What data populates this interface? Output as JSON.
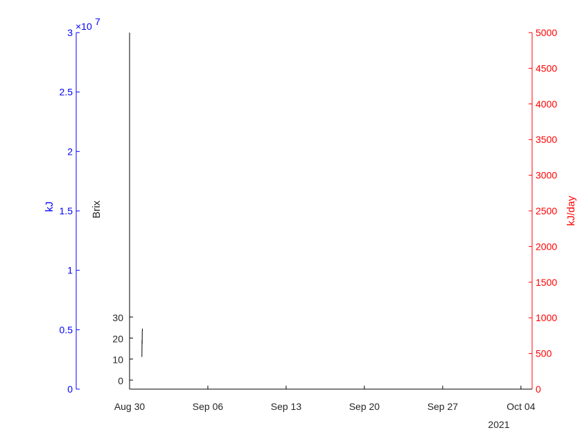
{
  "chart_data": {
    "type": "line",
    "title": "",
    "colors": {
      "left": "#0000ff",
      "right": "#ff0000",
      "brix": "#262626",
      "series": "#000000"
    },
    "x_axis": {
      "ticks": [
        {
          "date": "2021-08-30",
          "label": "Aug 30"
        },
        {
          "date": "2021-09-06",
          "label": "Sep 06"
        },
        {
          "date": "2021-09-13",
          "label": "Sep 13"
        },
        {
          "date": "2021-09-20",
          "label": "Sep 20"
        },
        {
          "date": "2021-09-27",
          "label": "Sep 27"
        },
        {
          "date": "2021-10-04",
          "label": "Oct 04"
        }
      ],
      "year_label": "2021",
      "range": [
        "2021-08-30",
        "2021-10-05"
      ]
    },
    "left_axis": {
      "label": "kJ",
      "exponent_label": "×10",
      "exponent_power": "7",
      "range": [
        0,
        3
      ],
      "ticks": [
        "0",
        "0.5",
        "1",
        "1.5",
        "2",
        "2.5",
        "3"
      ]
    },
    "brix_axis": {
      "label": "Brix",
      "ticks": [
        "0",
        "10",
        "20",
        "30"
      ],
      "tick_values": [
        0,
        10,
        20,
        30
      ]
    },
    "right_axis": {
      "label": "kJ/day",
      "range": [
        0,
        5000
      ],
      "ticks": [
        "0",
        "500",
        "1000",
        "1500",
        "2000",
        "2500",
        "3000",
        "3500",
        "4000",
        "4500",
        "5000"
      ]
    },
    "series": [
      {
        "axis": "brix",
        "points": [
          {
            "x": "2021-08-31T02:30",
            "y": 11
          },
          {
            "x": "2021-08-31T02:45",
            "y": 19
          },
          {
            "x": "2021-08-31T03:00",
            "y": 17
          },
          {
            "x": "2021-08-31T03:10",
            "y": 23
          },
          {
            "x": "2021-08-31T03:30",
            "y": 24
          },
          {
            "x": "2021-08-31T03:45",
            "y": 24.5
          }
        ]
      }
    ]
  }
}
